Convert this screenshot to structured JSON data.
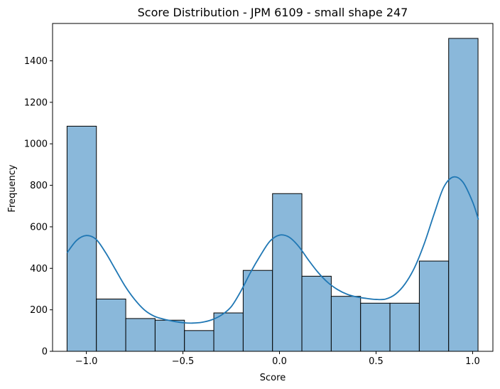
{
  "chart_data": {
    "type": "bar",
    "title": "Score Distribution - JPM 6109 - small shape 247",
    "xlabel": "Score",
    "ylabel": "Frequency",
    "xlim": [
      -1.175,
      1.105
    ],
    "ylim": [
      0,
      1580
    ],
    "bin_edges": [
      -1.1,
      -0.948,
      -0.796,
      -0.644,
      -0.492,
      -0.34,
      -0.188,
      -0.036,
      0.116,
      0.268,
      0.42,
      0.572,
      0.724,
      0.876,
      1.028
    ],
    "values": [
      1085,
      252,
      158,
      150,
      100,
      185,
      390,
      760,
      362,
      265,
      232,
      232,
      435,
      1508
    ],
    "x_ticks": [
      -1.0,
      -0.5,
      0.0,
      0.5,
      1.0
    ],
    "x_tick_labels": [
      "−1.0",
      "−0.5",
      "0.0",
      "0.5",
      "1.0"
    ],
    "y_ticks": [
      0,
      200,
      400,
      600,
      800,
      1000,
      1200,
      1400
    ],
    "y_tick_labels": [
      "0",
      "200",
      "400",
      "600",
      "800",
      "1000",
      "1200",
      "1400"
    ],
    "kde": {
      "x": [
        -1.1,
        -1.05,
        -1.0,
        -0.95,
        -0.9,
        -0.85,
        -0.8,
        -0.75,
        -0.7,
        -0.65,
        -0.6,
        -0.55,
        -0.5,
        -0.45,
        -0.4,
        -0.35,
        -0.3,
        -0.25,
        -0.2,
        -0.15,
        -0.1,
        -0.05,
        0.0,
        0.05,
        0.1,
        0.15,
        0.2,
        0.25,
        0.3,
        0.35,
        0.4,
        0.45,
        0.5,
        0.55,
        0.6,
        0.65,
        0.7,
        0.75,
        0.8,
        0.85,
        0.9,
        0.95,
        1.0,
        1.03
      ],
      "y": [
        475,
        535,
        558,
        540,
        475,
        395,
        315,
        250,
        200,
        170,
        155,
        145,
        138,
        136,
        140,
        152,
        175,
        215,
        290,
        380,
        460,
        530,
        560,
        550,
        505,
        440,
        380,
        332,
        298,
        275,
        262,
        255,
        250,
        252,
        275,
        325,
        405,
        520,
        660,
        790,
        840,
        815,
        720,
        635
      ]
    },
    "bar_fill": "#8ab8da",
    "bar_stroke": "#000000",
    "kde_color": "#1f77b4",
    "grid": false,
    "legend": "none"
  }
}
